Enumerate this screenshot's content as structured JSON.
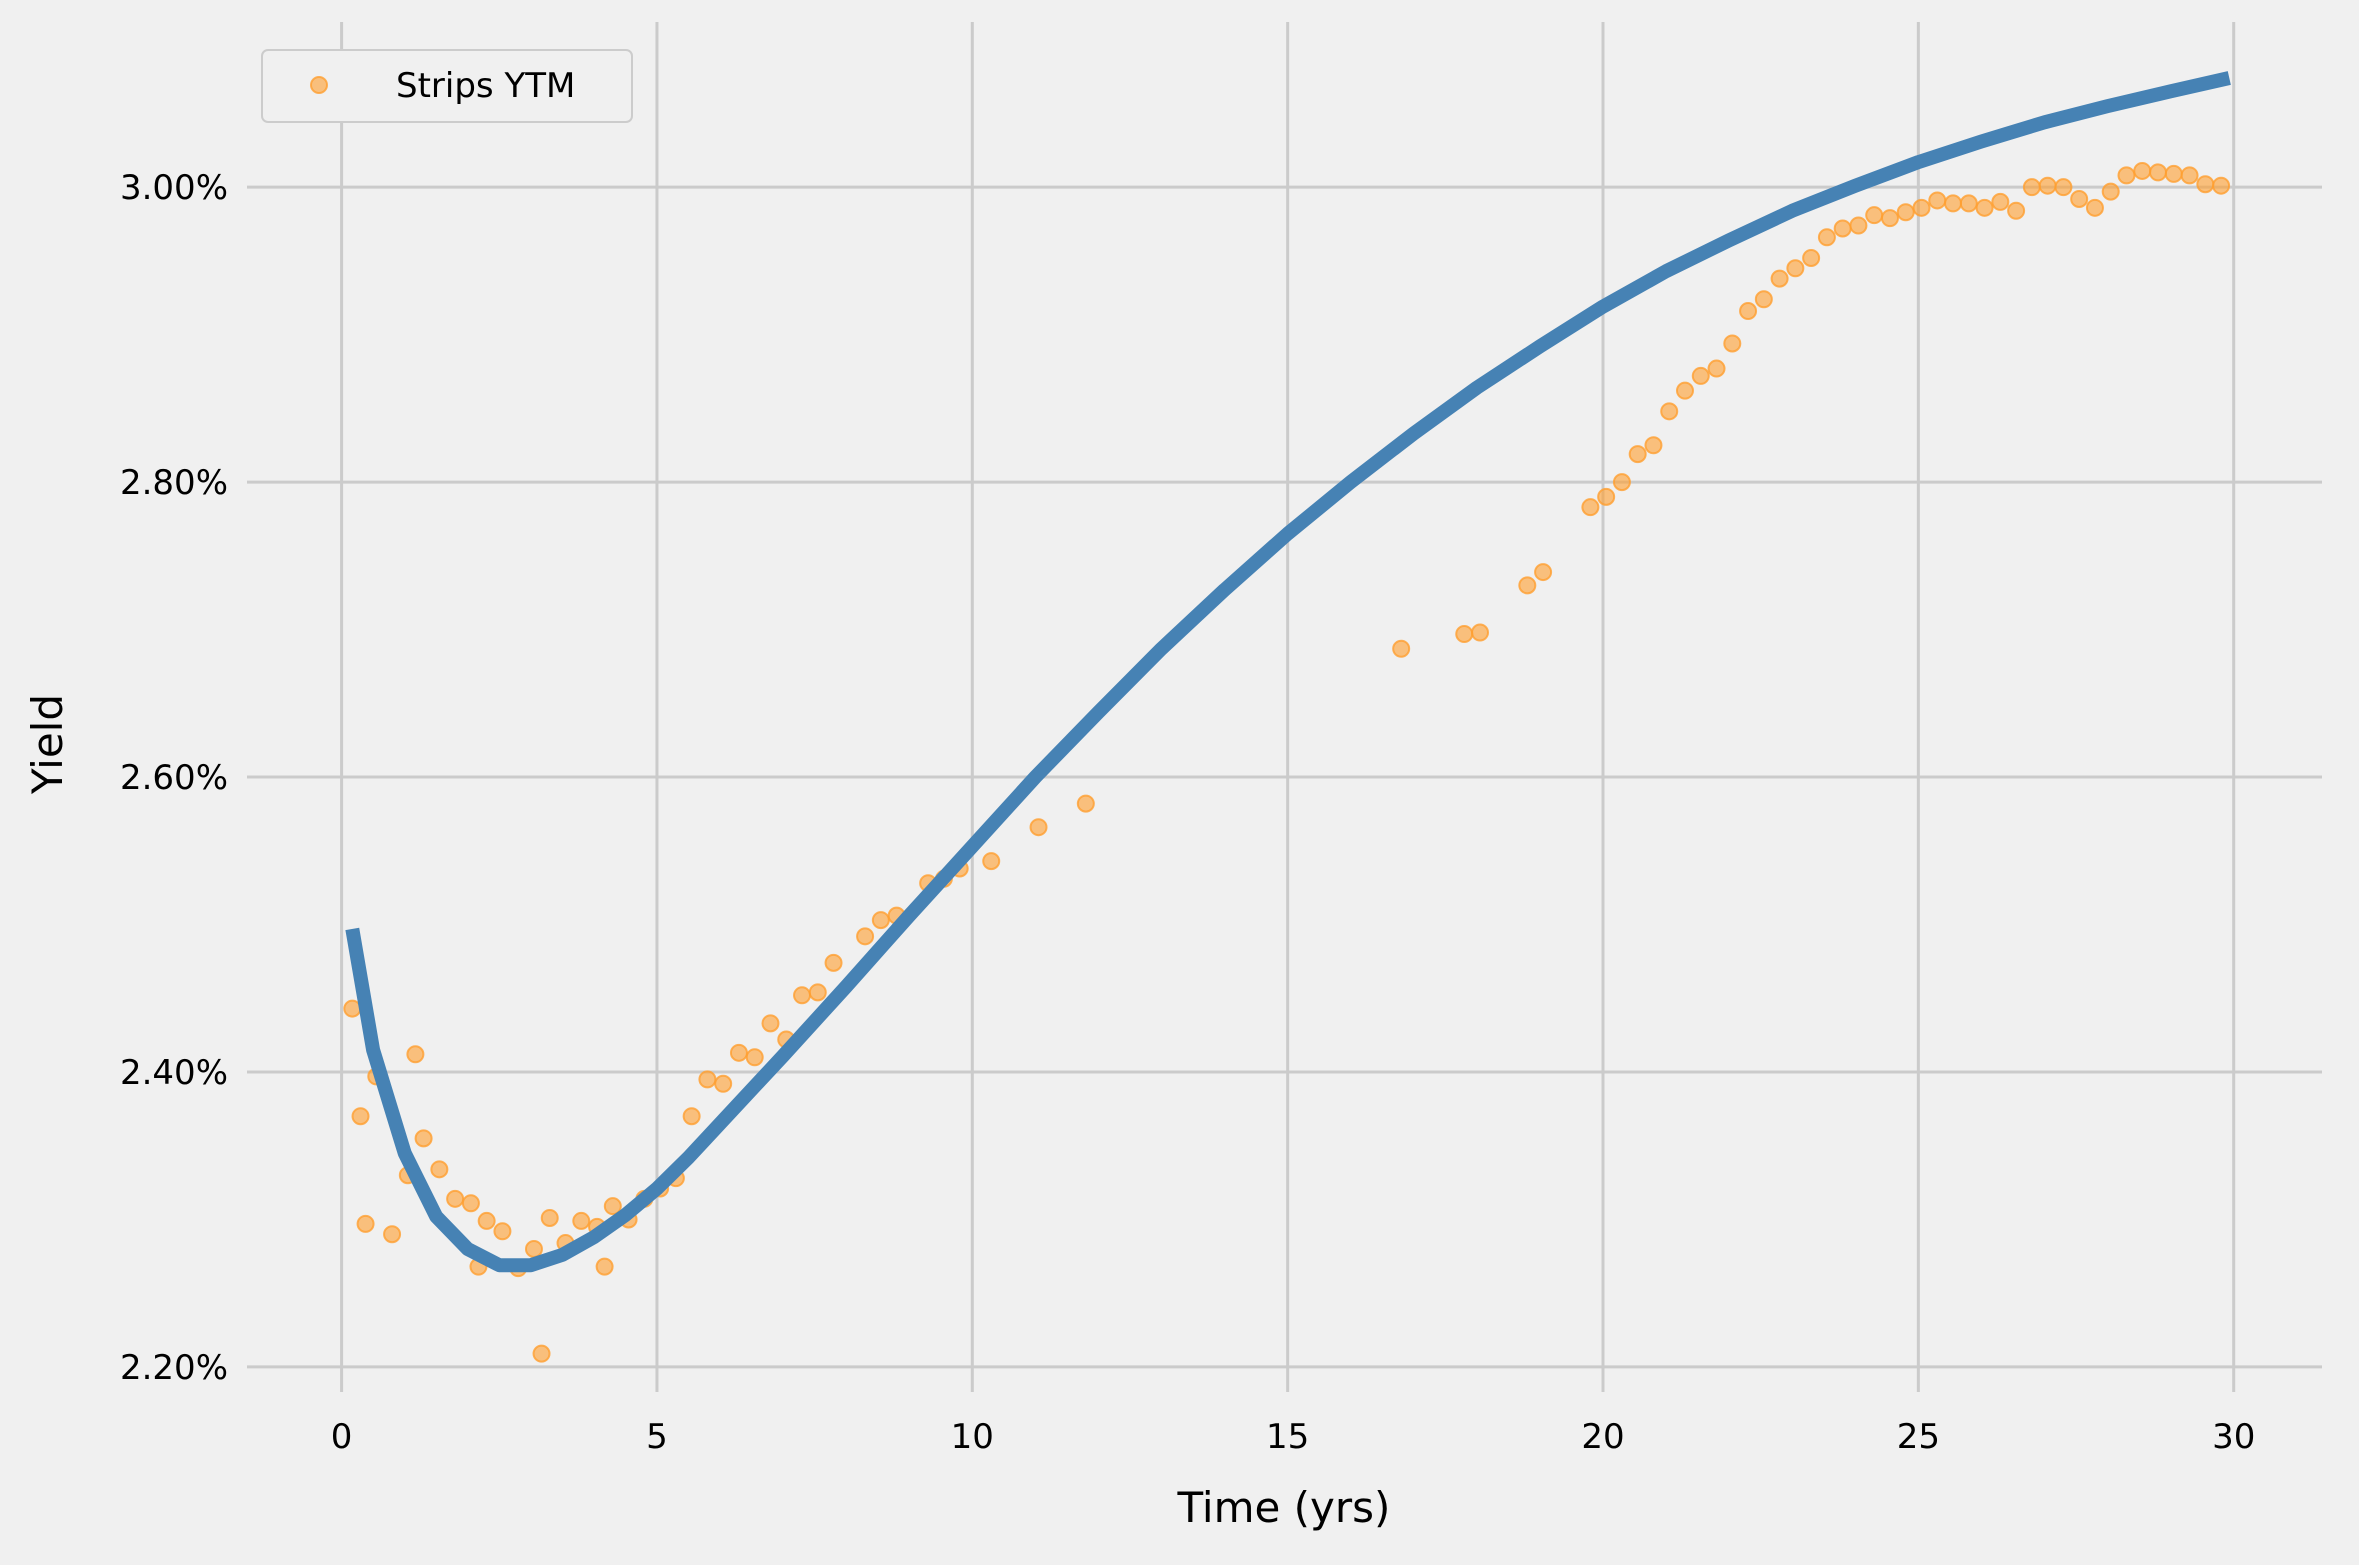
{
  "chart_data": {
    "type": "scatter",
    "title": "",
    "xlabel": "Time (yrs)",
    "ylabel": "Yield",
    "xlim": [
      -1.5,
      31.4
    ],
    "ylim": [
      2.183,
      3.112
    ],
    "xticks": [
      0,
      5,
      10,
      15,
      20,
      25,
      30
    ],
    "xtick_labels": [
      "0",
      "5",
      "10",
      "15",
      "20",
      "25",
      "30"
    ],
    "yticks": [
      2.2,
      2.4,
      2.6,
      2.8,
      3.0
    ],
    "ytick_labels": [
      "2.20%",
      "2.40%",
      "2.60%",
      "2.80%",
      "3.00%"
    ],
    "grid": true,
    "legend_position": "top-left",
    "colors": {
      "points": "#ff9f2f",
      "curve": "#4682b4",
      "grid": "#cbcbcb",
      "background": "#f0f0f0"
    },
    "series": [
      {
        "name": "Strips YTM",
        "kind": "scatter",
        "x": [
          0.17,
          0.3,
          0.38,
          0.55,
          0.8,
          1.05,
          1.17,
          1.3,
          1.55,
          1.8,
          2.05,
          2.17,
          2.3,
          2.55,
          2.8,
          3.05,
          3.17,
          3.3,
          3.55,
          3.8,
          4.05,
          4.17,
          4.3,
          4.55,
          4.8,
          5.05,
          5.3,
          5.55,
          5.8,
          6.05,
          6.3,
          6.55,
          6.8,
          7.05,
          7.3,
          7.55,
          7.8,
          8.3,
          8.55,
          8.8,
          9.3,
          9.55,
          9.8,
          10.3,
          11.05,
          11.8,
          16.8,
          17.8,
          18.05,
          18.8,
          19.05,
          19.8,
          20.05,
          20.3,
          20.55,
          20.8,
          21.05,
          21.3,
          21.55,
          21.8,
          22.05,
          22.3,
          22.55,
          22.8,
          23.05,
          23.3,
          23.55,
          23.8,
          24.05,
          24.3,
          24.55,
          24.8,
          25.05,
          25.3,
          25.55,
          25.8,
          26.05,
          26.3,
          26.55,
          26.8,
          27.05,
          27.3,
          27.55,
          27.8,
          28.05,
          28.3,
          28.55,
          28.8,
          29.05,
          29.3,
          29.55,
          29.8
        ],
        "y": [
          2.443,
          2.37,
          2.297,
          2.397,
          2.29,
          2.33,
          2.412,
          2.355,
          2.334,
          2.314,
          2.311,
          2.268,
          2.299,
          2.292,
          2.267,
          2.28,
          2.209,
          2.301,
          2.284,
          2.299,
          2.295,
          2.268,
          2.309,
          2.3,
          2.314,
          2.321,
          2.328,
          2.37,
          2.395,
          2.392,
          2.413,
          2.41,
          2.433,
          2.422,
          2.452,
          2.454,
          2.474,
          2.492,
          2.503,
          2.506,
          2.528,
          2.531,
          2.538,
          2.543,
          2.566,
          2.582,
          2.687,
          2.697,
          2.698,
          2.73,
          2.739,
          2.783,
          2.79,
          2.8,
          2.819,
          2.825,
          2.848,
          2.862,
          2.872,
          2.877,
          2.894,
          2.916,
          2.924,
          2.938,
          2.945,
          2.952,
          2.966,
          2.972,
          2.974,
          2.981,
          2.979,
          2.983,
          2.986,
          2.991,
          2.989,
          2.989,
          2.986,
          2.99,
          2.984,
          3.0,
          3.001,
          3.0,
          2.992,
          2.986,
          2.997,
          3.008,
          3.011,
          3.01,
          3.009,
          3.008,
          3.002,
          3.001
        ]
      },
      {
        "kind": "line",
        "x": [
          0.17,
          0.5,
          1.0,
          1.5,
          2.0,
          2.5,
          3.0,
          3.5,
          4.0,
          4.5,
          5.0,
          5.5,
          6.0,
          7.0,
          8.0,
          9.0,
          10.0,
          11.0,
          12.0,
          13.0,
          14.0,
          15.0,
          16.0,
          17.0,
          18.0,
          19.0,
          20.0,
          21.0,
          22.0,
          23.0,
          24.0,
          25.0,
          26.0,
          27.0,
          28.0,
          29.0,
          29.93
        ],
        "y": [
          2.497,
          2.415,
          2.345,
          2.302,
          2.28,
          2.269,
          2.269,
          2.276,
          2.288,
          2.303,
          2.321,
          2.342,
          2.365,
          2.411,
          2.458,
          2.506,
          2.553,
          2.6,
          2.644,
          2.687,
          2.727,
          2.765,
          2.8,
          2.833,
          2.864,
          2.892,
          2.919,
          2.943,
          2.964,
          2.984,
          3.001,
          3.017,
          3.031,
          3.044,
          3.055,
          3.065,
          3.074
        ]
      }
    ]
  }
}
